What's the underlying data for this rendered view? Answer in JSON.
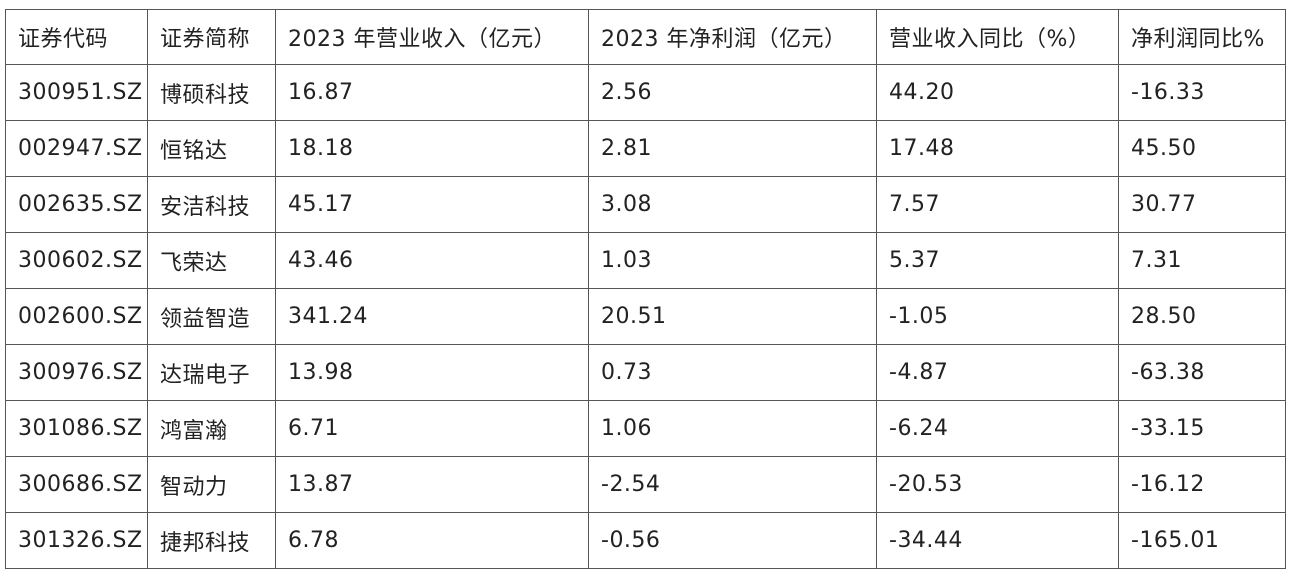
{
  "table": {
    "headers": [
      "证券代码",
      "证券简称",
      "2023 年营业收入（亿元）",
      "2023 年净利润（亿元）",
      "营业收入同比（%）",
      "净利润同比%"
    ],
    "rows": [
      [
        "300951.SZ",
        "博硕科技",
        "16.87",
        "2.56",
        "44.20",
        "-16.33"
      ],
      [
        "002947.SZ",
        "恒铭达",
        "18.18",
        "2.81",
        "17.48",
        "45.50"
      ],
      [
        "002635.SZ",
        "安洁科技",
        "45.17",
        "3.08",
        "7.57",
        "30.77"
      ],
      [
        "300602.SZ",
        "飞荣达",
        "43.46",
        "1.03",
        "5.37",
        "7.31"
      ],
      [
        "002600.SZ",
        "领益智造",
        "341.24",
        "20.51",
        "-1.05",
        "28.50"
      ],
      [
        "300976.SZ",
        "达瑞电子",
        "13.98",
        "0.73",
        "-4.87",
        "-63.38"
      ],
      [
        "301086.SZ",
        "鸿富瀚",
        "6.71",
        "1.06",
        "-6.24",
        "-33.15"
      ],
      [
        "300686.SZ",
        "智动力",
        "13.87",
        "-2.54",
        "-20.53",
        "-16.12"
      ],
      [
        "301326.SZ",
        "捷邦科技",
        "6.78",
        "-0.56",
        "-34.44",
        "-165.01"
      ]
    ]
  }
}
